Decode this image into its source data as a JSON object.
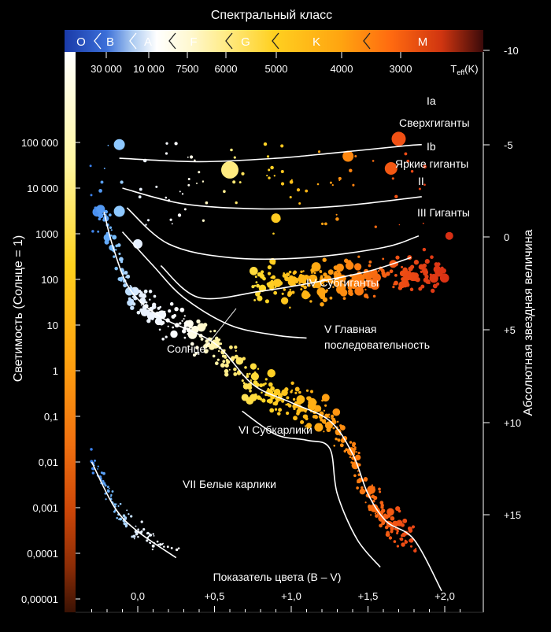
{
  "chart_data": {
    "type": "scatter",
    "title": "Спектральный класс",
    "xlabel": "Показатель цвета (B – V)",
    "ylabel": "Светимость (Солнце = 1)",
    "y2label": "Абсолютная звездная величина",
    "teff_label": "T",
    "teff_sub": "eff",
    "teff_unit": "(K)",
    "spectral_classes": [
      "O",
      "B",
      "A",
      "F",
      "G",
      "K",
      "M"
    ],
    "teff_ticks": [
      "30 000",
      "10 000",
      "7500",
      "6000",
      "5000",
      "4000",
      "3000"
    ],
    "x_ticks": [
      "0,0",
      "+0,5",
      "+1,0",
      "+1,5",
      "+2,0"
    ],
    "y_ticks": [
      "100 000",
      "10 000",
      "1000",
      "100",
      "10",
      "1",
      "0,1",
      "0,01",
      "0,001",
      "0,0001",
      "0,00001"
    ],
    "mag_ticks": [
      "-10",
      "-5",
      "0",
      "+5",
      "+10",
      "+15"
    ],
    "y_scale": "log",
    "xlim": [
      -0.45,
      2.3
    ],
    "ylim": [
      1e-06,
      1000000
    ],
    "color_bar_colors": [
      "#ffffff",
      "#fff6a0",
      "#ffd21e",
      "#ffa210",
      "#f07010",
      "#cc4608",
      "#8a2c06",
      "#3a1204"
    ],
    "classes": [
      {
        "label": "Ia",
        "points": [
          [
            -0.12,
            45000
          ],
          [
            0.4,
            38000
          ],
          [
            0.9,
            45000
          ],
          [
            1.3,
            60000
          ],
          [
            1.75,
            85000
          ],
          [
            1.85,
            90000
          ]
        ]
      },
      {
        "label": "Ib",
        "points": [
          [
            -0.1,
            10000
          ],
          [
            0.3,
            4500
          ],
          [
            0.8,
            3500
          ],
          [
            1.3,
            4000
          ],
          [
            1.85,
            6500
          ]
        ]
      },
      {
        "label": "II",
        "points": [
          [
            -0.07,
            3700
          ],
          [
            0.2,
            600
          ],
          [
            0.6,
            300
          ],
          [
            1.1,
            300
          ],
          [
            1.6,
            500
          ],
          [
            1.83,
            900
          ]
        ]
      },
      {
        "label": "III",
        "points": [
          [
            0.15,
            200
          ],
          [
            0.4,
            40
          ],
          [
            0.8,
            55
          ],
          [
            1.1,
            80
          ],
          [
            1.5,
            150
          ],
          [
            1.78,
            300
          ]
        ]
      },
      {
        "label": "IV",
        "points": [
          [
            -0.1,
            1100
          ],
          [
            0.1,
            200
          ],
          [
            0.3,
            40
          ],
          [
            0.6,
            10
          ],
          [
            0.9,
            6
          ],
          [
            1.1,
            5.2
          ]
        ]
      },
      {
        "label": "V",
        "points": [
          [
            -0.22,
            3000
          ],
          [
            -0.16,
            500
          ],
          [
            -0.05,
            60
          ],
          [
            0.15,
            15
          ],
          [
            0.5,
            4
          ],
          [
            0.75,
            0.5
          ],
          [
            1.0,
            0.2
          ],
          [
            1.25,
            0.08
          ],
          [
            1.4,
            0.015
          ],
          [
            1.5,
            0.002
          ],
          [
            1.62,
            0.0005
          ],
          [
            1.8,
            0.0002
          ],
          [
            1.98,
            1.5e-05
          ]
        ]
      },
      {
        "label": "VI",
        "points": [
          [
            0.68,
            0.13
          ],
          [
            0.9,
            0.04
          ],
          [
            1.1,
            0.03
          ],
          [
            1.25,
            0.02
          ],
          [
            1.3,
            0.002
          ],
          [
            1.43,
            0.0002
          ],
          [
            1.58,
            5e-05
          ]
        ]
      },
      {
        "label": "WD",
        "points": [
          [
            -0.3,
            0.01
          ],
          [
            -0.15,
            0.001
          ],
          [
            0.0,
            0.0003
          ],
          [
            0.25,
            8e-05
          ]
        ]
      }
    ],
    "annotations": [
      "Ia",
      "Сверхгиганты",
      "Ib",
      "Яркие гиганты",
      "II",
      "III Гиганты",
      "IV Субгиганты",
      "V Главная",
      "последовательность",
      "Солнце",
      "VI Субкарлики",
      "VII Белые карлики"
    ],
    "grid": false,
    "legend": "none"
  }
}
